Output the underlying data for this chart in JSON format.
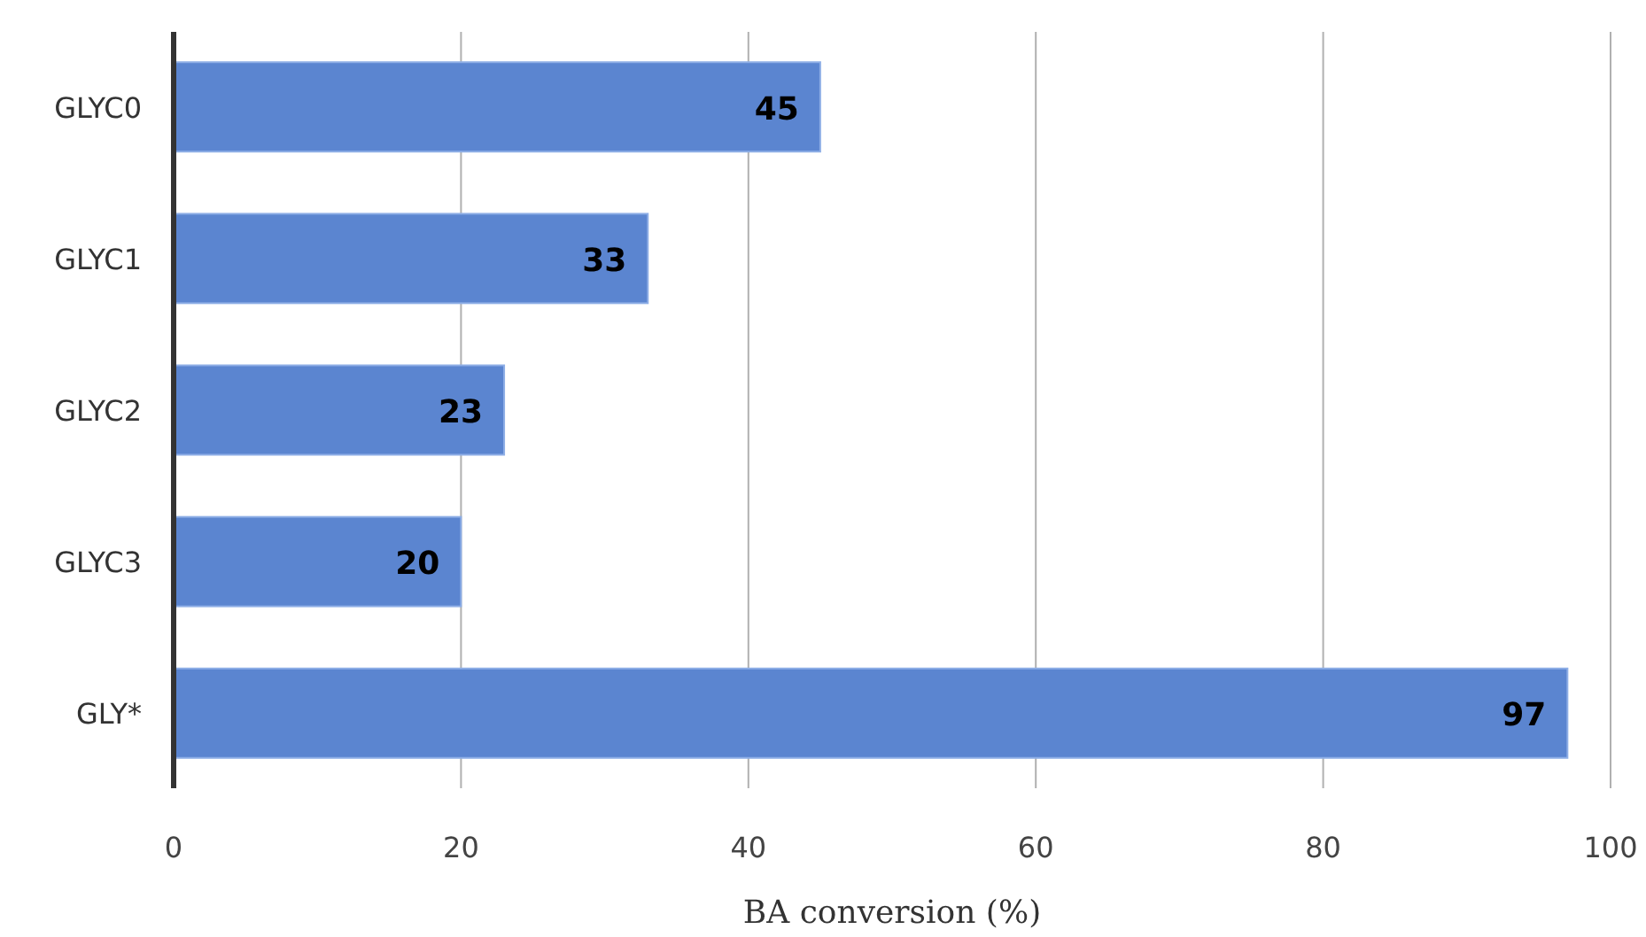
{
  "chart_data": {
    "type": "bar",
    "orientation": "horizontal",
    "categories": [
      "GLYC0",
      "GLYC1",
      "GLYC2",
      "GLYC3",
      "GLY*"
    ],
    "values": [
      45,
      33,
      23,
      20,
      97
    ],
    "color": "#5b85d0",
    "xlim": [
      0,
      100
    ],
    "xticks": [
      0,
      20,
      40,
      60,
      80,
      100
    ],
    "grid": "x",
    "data_labels": true,
    "xlabel": "BA conversion (%)"
  }
}
